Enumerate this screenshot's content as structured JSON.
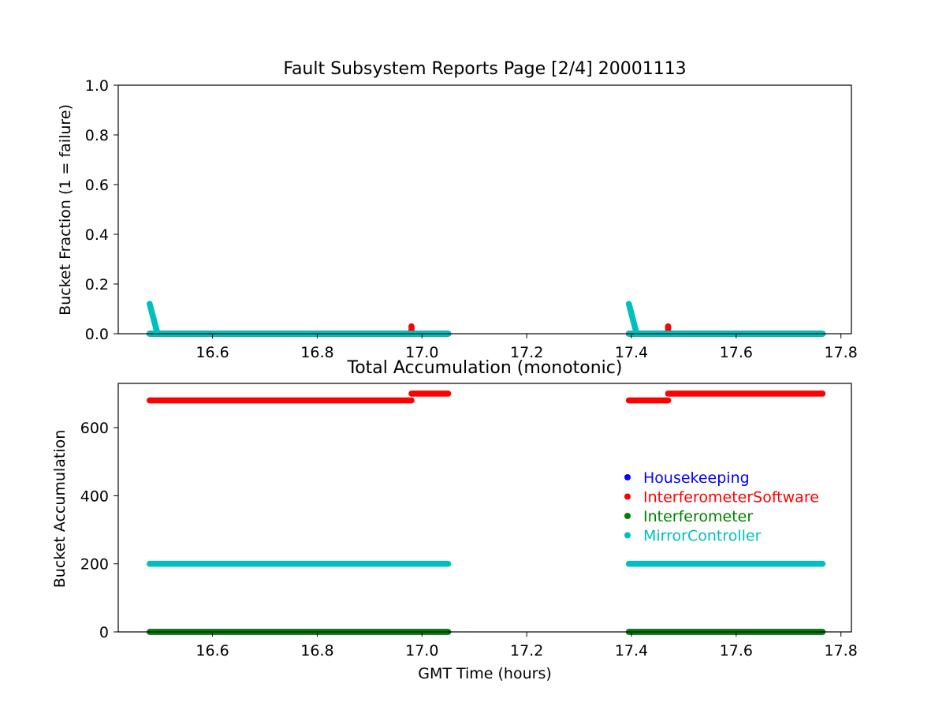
{
  "page": {
    "title": "Fault Subsystem Reports Page [2/4] 20001113"
  },
  "colors": {
    "Housekeeping": "#0000ff",
    "InterferometerSoftware": "#ff0000",
    "Interferometer": "#008000",
    "MirrorController": "#00bfbf"
  },
  "chart_data": [
    {
      "type": "scatter",
      "title": "Fault Subsystem Reports Page [2/4] 20001113",
      "xlabel": "",
      "ylabel": "Bucket Fraction (1 = failure)",
      "xlim": [
        16.42,
        17.82
      ],
      "ylim": [
        0,
        1.0
      ],
      "xticks": [
        "16.6",
        "16.8",
        "17.0",
        "17.2",
        "17.4",
        "17.6",
        "17.8"
      ],
      "yticks": [
        "0.0",
        "0.2",
        "0.4",
        "0.6",
        "0.8",
        "1.0"
      ],
      "grid": false,
      "series": [
        {
          "name": "Housekeeping",
          "segments": [
            {
              "x0": 16.48,
              "x1": 17.05,
              "value": 0.0
            },
            {
              "x0": 17.395,
              "x1": 17.765,
              "value": 0.0
            }
          ]
        },
        {
          "name": "InterferometerSoftware",
          "segments": [
            {
              "x0": 16.48,
              "x1": 17.05,
              "value": 0.0
            },
            {
              "x0": 17.395,
              "x1": 17.765,
              "value": 0.0
            }
          ],
          "spikes": [
            {
              "x": 16.98,
              "from": 0.03,
              "to": 0.0
            },
            {
              "x": 17.47,
              "from": 0.03,
              "to": 0.0
            }
          ]
        },
        {
          "name": "Interferometer",
          "segments": [
            {
              "x0": 16.48,
              "x1": 17.05,
              "value": 0.0
            },
            {
              "x0": 17.395,
              "x1": 17.765,
              "value": 0.0
            }
          ]
        },
        {
          "name": "MirrorController",
          "segments": [
            {
              "x0": 16.48,
              "x1": 17.05,
              "value": 0.0
            },
            {
              "x0": 17.395,
              "x1": 17.765,
              "value": 0.0
            }
          ],
          "decays": [
            {
              "x0": 16.48,
              "x1": 16.495,
              "from": 0.12,
              "to": 0.0
            },
            {
              "x0": 17.395,
              "x1": 17.41,
              "from": 0.12,
              "to": 0.0
            }
          ]
        }
      ]
    },
    {
      "type": "scatter",
      "title": "Total Accumulation (monotonic)",
      "xlabel": "GMT Time (hours)",
      "ylabel": "Bucket Accumulation",
      "xlim": [
        16.42,
        17.82
      ],
      "ylim": [
        0,
        730
      ],
      "xticks": [
        "16.6",
        "16.8",
        "17.0",
        "17.2",
        "17.4",
        "17.6",
        "17.8"
      ],
      "yticks": [
        "0",
        "200",
        "400",
        "600"
      ],
      "grid": false,
      "legend": "center-right",
      "series": [
        {
          "name": "Housekeeping",
          "segments": [
            {
              "x0": 16.48,
              "x1": 17.05,
              "value": 0
            },
            {
              "x0": 17.395,
              "x1": 17.765,
              "value": 0
            }
          ]
        },
        {
          "name": "InterferometerSoftware",
          "segments": [
            {
              "x0": 16.48,
              "x1": 16.98,
              "value": 680
            },
            {
              "x0": 16.98,
              "x1": 17.05,
              "value": 700
            },
            {
              "x0": 17.395,
              "x1": 17.47,
              "value": 680
            },
            {
              "x0": 17.47,
              "x1": 17.765,
              "value": 700
            }
          ]
        },
        {
          "name": "Interferometer",
          "segments": [
            {
              "x0": 16.48,
              "x1": 17.05,
              "value": 0
            },
            {
              "x0": 17.395,
              "x1": 17.765,
              "value": 0
            }
          ]
        },
        {
          "name": "MirrorController",
          "segments": [
            {
              "x0": 16.48,
              "x1": 17.05,
              "value": 200
            },
            {
              "x0": 17.395,
              "x1": 17.765,
              "value": 200
            }
          ]
        }
      ]
    }
  ]
}
